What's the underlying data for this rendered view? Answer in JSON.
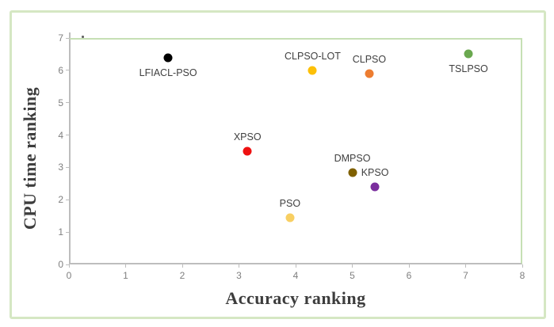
{
  "chart_data": {
    "type": "scatter",
    "title": "",
    "xlabel": "Accuracy ranking",
    "ylabel": "CPU time ranking",
    "xlim": [
      0,
      8
    ],
    "ylim": [
      0,
      7
    ],
    "x_ticks": [
      0,
      1,
      2,
      3,
      4,
      5,
      6,
      7,
      8
    ],
    "y_ticks": [
      0,
      1,
      2,
      3,
      4,
      5,
      6,
      7
    ],
    "grid": false,
    "legend_position": "none",
    "points": [
      {
        "label": "LFIACL-PSO",
        "x": 1.75,
        "y": 6.4,
        "color": "#000000",
        "label_position": "below"
      },
      {
        "label": "XPSO",
        "x": 3.15,
        "y": 3.5,
        "color": "#ee1111",
        "label_position": "above"
      },
      {
        "label": "PSO",
        "x": 3.9,
        "y": 1.45,
        "color": "#f8cf62",
        "label_position": "above"
      },
      {
        "label": "CLPSO-LOT",
        "x": 4.3,
        "y": 6.0,
        "color": "#fdc008",
        "label_position": "above"
      },
      {
        "label": "CLPSO",
        "x": 5.3,
        "y": 5.9,
        "color": "#ed7d31",
        "label_position": "above"
      },
      {
        "label": "DMPSO",
        "x": 5.0,
        "y": 2.85,
        "color": "#7f6000",
        "label_position": "above"
      },
      {
        "label": "KPSO",
        "x": 5.4,
        "y": 2.4,
        "color": "#7b2f9e",
        "label_position": "above"
      },
      {
        "label": "TSLPSO",
        "x": 7.05,
        "y": 6.5,
        "color": "#6aa84f",
        "label_position": "below"
      }
    ]
  },
  "colors": {
    "background": "#ffffff",
    "frame_border": "#d5e7c3",
    "plot_border": "#c6e0b4",
    "axis_line": "#bdbdbd",
    "tick_label": "#7f7f7f",
    "point_label": "#3f3f3f",
    "axis_title": "#3d3d3d"
  }
}
